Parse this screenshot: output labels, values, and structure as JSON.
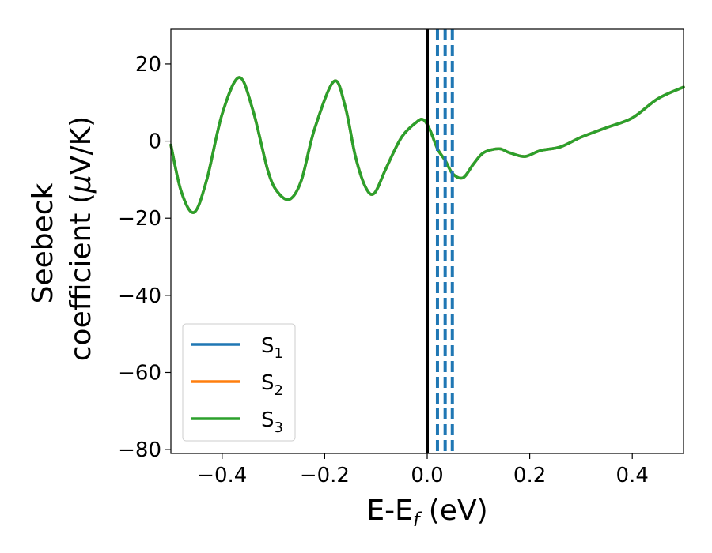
{
  "chart_data": {
    "type": "line",
    "xlabel": {
      "base": "E-E",
      "sub": "f",
      "rest": " (eV)"
    },
    "ylabel": {
      "line1": "Seebeck",
      "line2_pre": "coefficient  (",
      "line2_mu": "μ",
      "line2_post": "V/K)"
    },
    "xlim": [
      -0.5,
      0.5
    ],
    "ylim": [
      -81,
      29
    ],
    "xticks": [
      -0.4,
      -0.2,
      0.0,
      0.2,
      0.4
    ],
    "xtick_labels": [
      "−0.4",
      "−0.2",
      "0.0",
      "0.2",
      "0.4"
    ],
    "yticks": [
      20,
      0,
      -20,
      -40,
      -60,
      -80
    ],
    "ytick_labels": [
      "20",
      "0",
      "−20",
      "−40",
      "−60",
      "−80"
    ],
    "legend": {
      "position": "lower-left",
      "entries": [
        {
          "base": "S",
          "sub": "1",
          "color": "#1f77b4"
        },
        {
          "base": "S",
          "sub": "2",
          "color": "#ff7f0e"
        },
        {
          "base": "S",
          "sub": "3",
          "color": "#2ca02c"
        }
      ]
    },
    "vertical_lines": [
      {
        "x": 0.0,
        "style": "solid",
        "color": "#000000"
      },
      {
        "x": 0.02,
        "style": "dashed",
        "color": "#1f77b4"
      },
      {
        "x": 0.035,
        "style": "dashed",
        "color": "#1f77b4"
      },
      {
        "x": 0.049,
        "style": "dashed",
        "color": "#1f77b4"
      }
    ],
    "series": [
      {
        "name": "S1",
        "color": "#1f77b4",
        "x": [
          -0.5,
          -0.48,
          -0.455,
          -0.43,
          -0.4,
          -0.367,
          -0.34,
          -0.31,
          -0.29,
          -0.267,
          -0.245,
          -0.22,
          -0.182,
          -0.16,
          -0.14,
          -0.12,
          -0.103,
          -0.08,
          -0.05,
          -0.02,
          -0.007,
          0.005,
          0.02,
          0.035,
          0.05,
          0.07,
          0.09,
          0.11,
          0.14,
          0.16,
          0.19,
          0.22,
          0.26,
          0.3,
          0.35,
          0.4,
          0.45,
          0.5
        ],
        "y": [
          -1,
          -13,
          -18.5,
          -10,
          7,
          16.5,
          8,
          -8,
          -13.5,
          -15,
          -10,
          3,
          15.5,
          9,
          -4,
          -12,
          -13.5,
          -7,
          1,
          5,
          5.5,
          3,
          -2,
          -5,
          -8.5,
          -9.5,
          -6,
          -3,
          -2,
          -3,
          -4,
          -2.5,
          -1.5,
          1,
          3.5,
          6,
          11,
          14
        ]
      },
      {
        "name": "S2",
        "color": "#ff7f0e",
        "x": [
          -0.5,
          -0.48,
          -0.455,
          -0.43,
          -0.4,
          -0.367,
          -0.34,
          -0.31,
          -0.29,
          -0.267,
          -0.245,
          -0.22,
          -0.182,
          -0.16,
          -0.14,
          -0.12,
          -0.103,
          -0.08,
          -0.05,
          -0.02,
          -0.007,
          0.005,
          0.02,
          0.035,
          0.05,
          0.07,
          0.09,
          0.11,
          0.14,
          0.16,
          0.19,
          0.22,
          0.26,
          0.3,
          0.35,
          0.4,
          0.45,
          0.5
        ],
        "y": [
          -1,
          -13,
          -18.5,
          -10,
          7,
          16.5,
          8,
          -8,
          -13.5,
          -15,
          -10,
          3,
          15.5,
          9,
          -4,
          -12,
          -13.5,
          -7,
          1,
          5,
          5.5,
          3,
          -2,
          -5,
          -8.5,
          -9.5,
          -6,
          -3,
          -2,
          -3,
          -4,
          -2.5,
          -1.5,
          1,
          3.5,
          6,
          11,
          14
        ]
      },
      {
        "name": "S3",
        "color": "#2ca02c",
        "x": [
          -0.5,
          -0.48,
          -0.455,
          -0.43,
          -0.4,
          -0.367,
          -0.34,
          -0.31,
          -0.29,
          -0.267,
          -0.245,
          -0.22,
          -0.182,
          -0.16,
          -0.14,
          -0.12,
          -0.103,
          -0.08,
          -0.05,
          -0.02,
          -0.007,
          0.005,
          0.02,
          0.035,
          0.05,
          0.07,
          0.09,
          0.11,
          0.14,
          0.16,
          0.19,
          0.22,
          0.26,
          0.3,
          0.35,
          0.4,
          0.45,
          0.5
        ],
        "y": [
          -1,
          -13,
          -18.5,
          -10,
          7,
          16.5,
          8,
          -8,
          -13.5,
          -15,
          -10,
          3,
          15.5,
          9,
          -4,
          -12,
          -13.5,
          -7,
          1,
          5,
          5.5,
          3,
          -2,
          -5,
          -8.5,
          -9.5,
          -6,
          -3,
          -2,
          -3,
          -4,
          -2.5,
          -1.5,
          1,
          3.5,
          6,
          11,
          14
        ]
      }
    ]
  }
}
